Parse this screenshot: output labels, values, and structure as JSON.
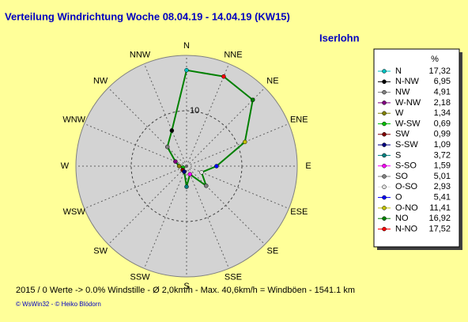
{
  "chart_data": {
    "type": "radar",
    "title": "Verteilung Windrichtung   Woche 08.04.19 - 14.04.19 (KW15)",
    "subtitle": "Iserlohn",
    "categories": [
      "N",
      "NNE",
      "NE",
      "ENE",
      "E",
      "ESE",
      "SE",
      "SSE",
      "S",
      "SSW",
      "SW",
      "WSW",
      "W",
      "WNW",
      "NW",
      "NNW"
    ],
    "legend_title": "%",
    "directions": [
      "N",
      "N-NW",
      "NW",
      "W-NW",
      "W",
      "W-SW",
      "SW",
      "S-SW",
      "S",
      "S-SO",
      "SO",
      "O-SO",
      "O",
      "O-NO",
      "NO",
      "N-NO"
    ],
    "colors": [
      "#00c0c0",
      "#000000",
      "#808080",
      "#800080",
      "#808000",
      "#00c000",
      "#800000",
      "#000080",
      "#008080",
      "#ff00ff",
      "#808080",
      "#e0e0e0",
      "#0000ff",
      "#c0c000",
      "#008000",
      "#ff0000"
    ],
    "values": [
      17.32,
      6.95,
      4.91,
      2.18,
      1.34,
      0.69,
      0.99,
      1.09,
      3.72,
      1.59,
      5.01,
      2.93,
      5.41,
      11.41,
      16.92,
      17.52
    ],
    "value_labels": [
      "17,32",
      "6,95",
      "4,91",
      "2,18",
      "1,34",
      "0,69",
      "0,99",
      "1,09",
      "3,72",
      "1,59",
      "5,01",
      "2,93",
      "5,41",
      "11,41",
      "16,92",
      "17,52"
    ],
    "line_color": "#008000",
    "rlim": [
      0,
      20
    ],
    "rticks": [
      10
    ]
  },
  "footer": {
    "stats": "2015 / 0 Werte  -> 0.0% Windstille   -   Ø 2,0km/h  -  Max. 40,6km/h = Windböen   -   1541.1 km",
    "credits": "© WsWin32  - © Heiko Blödorn"
  }
}
